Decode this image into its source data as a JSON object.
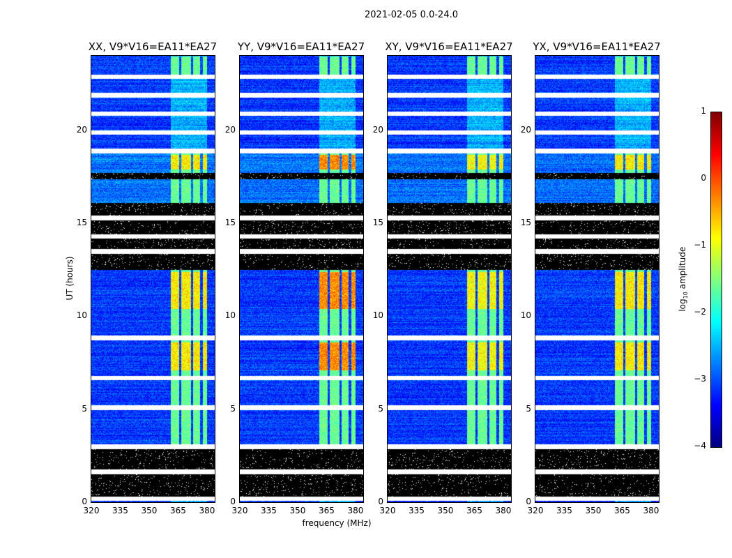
{
  "chart_data": {
    "type": "heatmap",
    "title": "2021-02-05 0.0-24.0",
    "xlabel": "frequency (MHz)",
    "ylabel": "UT (hours)",
    "xlim": [
      320,
      384
    ],
    "ylim": [
      0,
      24
    ],
    "xticks": [
      320,
      335,
      350,
      365,
      380
    ],
    "yticks": [
      0,
      5,
      10,
      15,
      20
    ],
    "panels": [
      {
        "title": "XX, V9*V16=EA11*EA27",
        "band_peak_log_amp": -0.8
      },
      {
        "title": "YY, V9*V16=EA11*EA27",
        "band_peak_log_amp": -0.3
      },
      {
        "title": "XY, V9*V16=EA11*EA27",
        "band_peak_log_amp": -0.9
      },
      {
        "title": "YX, V9*V16=EA11*EA27",
        "band_peak_log_amp": -0.8
      }
    ],
    "background_log_amp": -3.1,
    "rfi_band_mhz": [
      361,
      380
    ],
    "rfi_subband_gaps_mhz": [
      366,
      372,
      377
    ],
    "bright_ut_ranges": [
      [
        7.1,
        8.6
      ],
      [
        10.4,
        12.4
      ],
      [
        17.9,
        18.7
      ]
    ],
    "flagged_ut_ranges": [
      [
        0.27,
        1.57
      ],
      [
        1.7,
        2.95
      ],
      [
        12.5,
        16.1
      ],
      [
        17.4,
        17.7
      ]
    ],
    "gap_ut": [
      0.2,
      1.65,
      3.0,
      5.1,
      6.7,
      8.85,
      13.5,
      14.3,
      15.3,
      18.9,
      19.9,
      20.9,
      21.9,
      22.9
    ],
    "colorbar": {
      "label": "log10 amplitude",
      "label_main": "log",
      "label_sub": "10",
      "label_rest": " amplitude",
      "colormap": "jet",
      "range": [
        -4,
        1
      ],
      "ticks": [
        "1",
        "0",
        "−1",
        "−2",
        "−3",
        "−4"
      ]
    }
  }
}
